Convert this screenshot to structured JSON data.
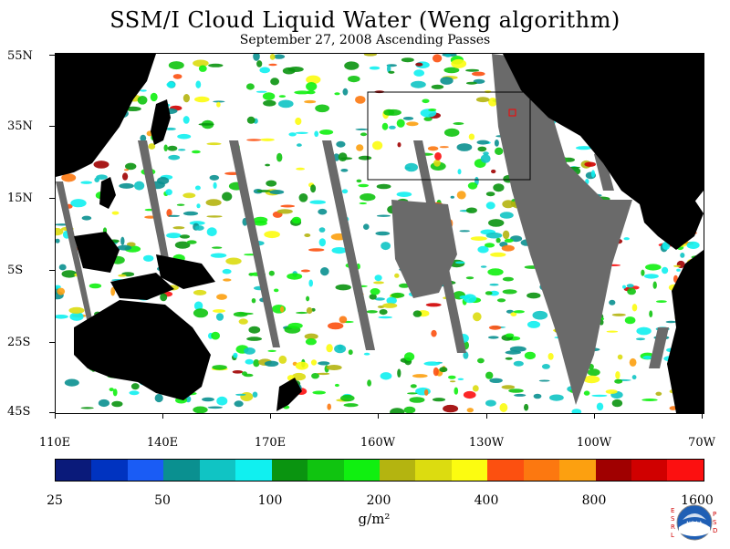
{
  "title": "SSM/I Cloud Liquid Water (Weng algorithm)",
  "subtitle": "September 27, 2008  Ascending Passes",
  "latitude_labels": [
    "55N",
    "35N",
    "15N",
    "5S",
    "25S",
    "45S"
  ],
  "longitude_labels": [
    "110E",
    "140E",
    "170E",
    "160W",
    "130W",
    "100W",
    "70W"
  ],
  "colorbar": {
    "colors": [
      "#0a1a7a",
      "#0033c0",
      "#1a5cf5",
      "#0a9090",
      "#10c4c4",
      "#10f0f0",
      "#0a9410",
      "#10c410",
      "#10f010",
      "#b4b410",
      "#dcdc10",
      "#fcfc10",
      "#fc5010",
      "#fc7810",
      "#fca010",
      "#a00000",
      "#d00000",
      "#fc1010"
    ],
    "labels": [
      "25",
      "50",
      "100",
      "200",
      "400",
      "800",
      "1600"
    ],
    "units": "g/m²"
  },
  "logo": {
    "left_letters": "ESRL",
    "right_letters": "PSD",
    "center": "NOAA"
  },
  "map_colors": {
    "land": "#000000",
    "missing": "#6a6a6a",
    "ocean": "#ffffff"
  }
}
